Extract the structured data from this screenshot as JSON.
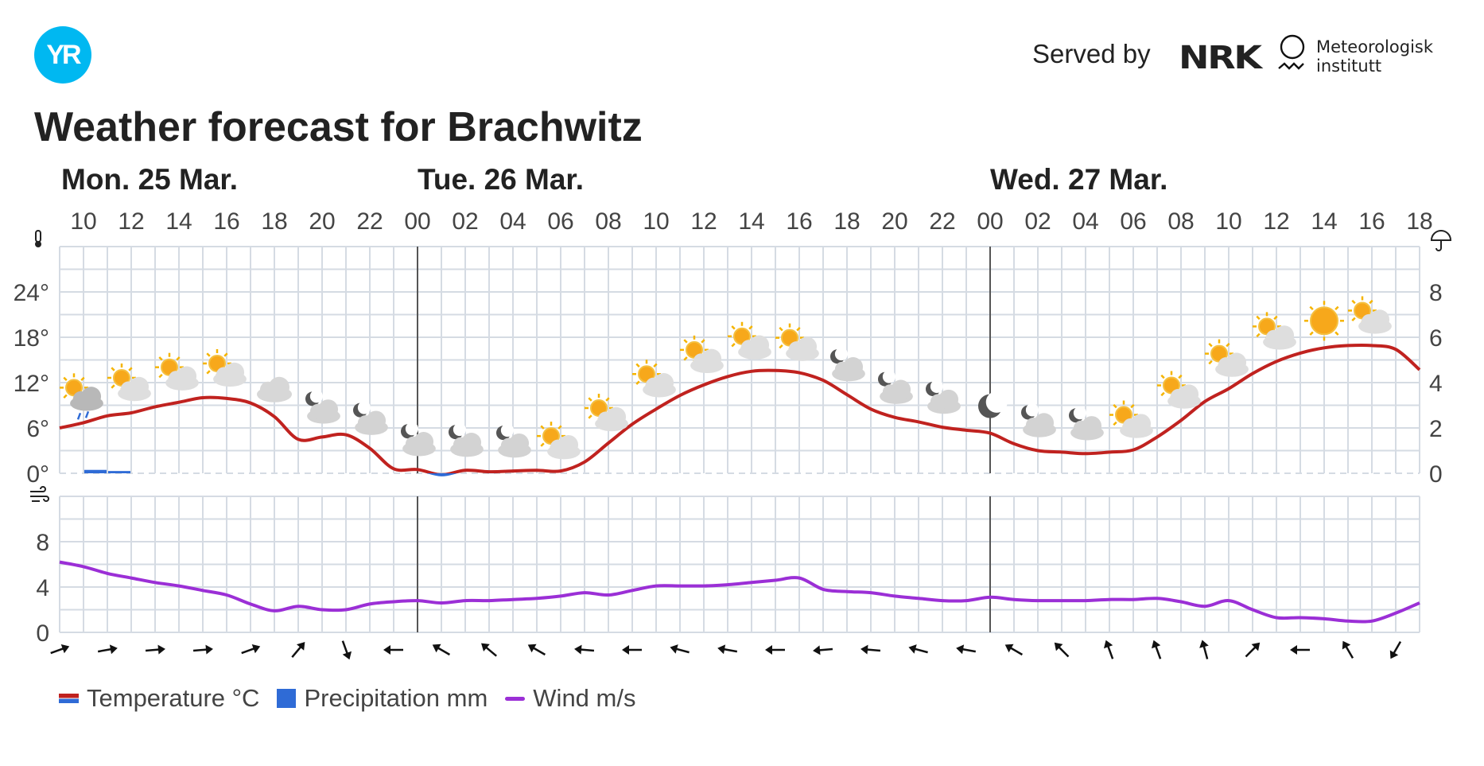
{
  "header": {
    "logo_text": "YR",
    "served_by": "Served by",
    "nrk_logo": "NRK",
    "met_name_line1": "Meteorologisk",
    "met_name_line2": "institutt",
    "title": "Weather forecast for Brachwitz"
  },
  "legend": {
    "temperature": "Temperature °C",
    "precipitation": "Precipitation mm",
    "wind": "Wind m/s"
  },
  "colors": {
    "temperature": "#c0221f",
    "temperature_below_zero": "#2f6bd6",
    "precipitation": "#2f6bd6",
    "wind": "#9b2fd6",
    "grid": "#d5dbe3",
    "day_divider": "#555555",
    "logo": "#00b8f1"
  },
  "chart_data": {
    "type": "line",
    "days": [
      {
        "label": "Mon. 25 Mar.",
        "start_hour": 9
      },
      {
        "label": "Tue. 26 Mar.",
        "start_hour": 24
      },
      {
        "label": "Wed. 27 Mar.",
        "start_hour": 48
      }
    ],
    "hour_ticks": [
      "10",
      "12",
      "14",
      "16",
      "18",
      "20",
      "22",
      "00",
      "02",
      "04",
      "06",
      "08",
      "10",
      "12",
      "14",
      "16",
      "18",
      "20",
      "22",
      "00",
      "02",
      "04",
      "06",
      "08",
      "10",
      "12",
      "14",
      "16",
      "18"
    ],
    "x_range_hours": [
      9,
      66
    ],
    "temperature": {
      "y_ticks": [
        "24°",
        "18°",
        "12°",
        "6°",
        "0°"
      ],
      "ylim": [
        0,
        30
      ],
      "values": [
        6.0,
        6.7,
        7.6,
        8.0,
        8.8,
        9.4,
        10.0,
        9.9,
        9.3,
        7.5,
        4.5,
        4.8,
        5.1,
        3.3,
        0.6,
        0.5,
        -0.2,
        0.4,
        0.2,
        0.3,
        0.4,
        0.3,
        1.5,
        4.0,
        6.5,
        8.5,
        10.3,
        11.7,
        12.8,
        13.5,
        13.6,
        13.3,
        12.3,
        10.4,
        8.5,
        7.4,
        6.8,
        6.1,
        5.7,
        5.3,
        3.9,
        3.0,
        2.8,
        2.6,
        2.8,
        3.1,
        4.8,
        7.0,
        9.5,
        11.2,
        13.2,
        14.8,
        15.9,
        16.6,
        16.9,
        16.9,
        16.4,
        13.7
      ]
    },
    "precipitation": {
      "y_ticks": [
        "8",
        "6",
        "4",
        "2",
        "0"
      ],
      "ylim": [
        0,
        10
      ],
      "bars": [
        {
          "hour": 10,
          "value": 0.15
        },
        {
          "hour": 11,
          "value": 0.1
        }
      ]
    },
    "wind": {
      "y_ticks": [
        "8",
        "4",
        "0"
      ],
      "ylim": [
        0,
        12
      ],
      "values": [
        6.2,
        5.8,
        5.2,
        4.8,
        4.4,
        4.1,
        3.7,
        3.3,
        2.5,
        1.9,
        2.3,
        2.0,
        2.0,
        2.5,
        2.7,
        2.8,
        2.6,
        2.8,
        2.8,
        2.9,
        3.0,
        3.2,
        3.5,
        3.3,
        3.7,
        4.1,
        4.1,
        4.1,
        4.2,
        4.4,
        4.6,
        4.8,
        3.8,
        3.6,
        3.5,
        3.2,
        3.0,
        2.8,
        2.8,
        3.1,
        2.9,
        2.8,
        2.8,
        2.8,
        2.9,
        2.9,
        3.0,
        2.7,
        2.3,
        2.8,
        2.0,
        1.3,
        1.3,
        1.2,
        1.0,
        1.0,
        1.7,
        2.6
      ]
    },
    "wind_direction_hours": [
      9,
      11,
      13,
      15,
      17,
      19,
      21,
      23,
      25,
      27,
      29,
      31,
      33,
      35,
      37,
      39,
      41,
      43,
      45,
      47,
      49,
      51,
      53,
      55,
      57,
      59,
      61,
      63,
      65
    ],
    "wind_direction_arrow_angles_deg": [
      70,
      80,
      85,
      85,
      70,
      40,
      160,
      270,
      300,
      310,
      300,
      275,
      270,
      285,
      280,
      270,
      265,
      275,
      285,
      280,
      300,
      315,
      340,
      340,
      345,
      45,
      270,
      330,
      210
    ],
    "weather_symbols": [
      {
        "hour": 10,
        "icon": "partly-cloudy-rain-icon"
      },
      {
        "hour": 12,
        "icon": "partly-cloudy-day-icon"
      },
      {
        "hour": 14,
        "icon": "partly-cloudy-day-icon"
      },
      {
        "hour": 16,
        "icon": "partly-cloudy-day-icon"
      },
      {
        "hour": 18,
        "icon": "cloudy-icon"
      },
      {
        "hour": 20,
        "icon": "partly-cloudy-night-icon"
      },
      {
        "hour": 22,
        "icon": "partly-cloudy-night-icon"
      },
      {
        "hour": 24,
        "icon": "partly-cloudy-night-icon"
      },
      {
        "hour": 26,
        "icon": "partly-cloudy-night-icon"
      },
      {
        "hour": 28,
        "icon": "partly-cloudy-night-icon"
      },
      {
        "hour": 30,
        "icon": "partly-cloudy-day-icon"
      },
      {
        "hour": 32,
        "icon": "partly-cloudy-day-icon"
      },
      {
        "hour": 34,
        "icon": "partly-cloudy-day-icon"
      },
      {
        "hour": 36,
        "icon": "partly-cloudy-day-icon"
      },
      {
        "hour": 38,
        "icon": "partly-cloudy-day-icon"
      },
      {
        "hour": 40,
        "icon": "partly-cloudy-day-icon"
      },
      {
        "hour": 42,
        "icon": "partly-cloudy-night-icon"
      },
      {
        "hour": 44,
        "icon": "partly-cloudy-night-icon"
      },
      {
        "hour": 46,
        "icon": "partly-cloudy-night-icon"
      },
      {
        "hour": 48,
        "icon": "clear-night-icon"
      },
      {
        "hour": 50,
        "icon": "partly-cloudy-night-icon"
      },
      {
        "hour": 52,
        "icon": "partly-cloudy-night-icon"
      },
      {
        "hour": 54,
        "icon": "partly-cloudy-day-icon"
      },
      {
        "hour": 56,
        "icon": "partly-cloudy-day-icon"
      },
      {
        "hour": 58,
        "icon": "partly-cloudy-day-icon"
      },
      {
        "hour": 60,
        "icon": "partly-cloudy-day-icon"
      },
      {
        "hour": 62,
        "icon": "clear-day-icon"
      },
      {
        "hour": 64,
        "icon": "partly-cloudy-day-icon"
      }
    ],
    "panel_icons": {
      "temperature": "thermometer-icon",
      "precipitation": "umbrella-icon",
      "wind": "wind-icon"
    },
    "grid": true
  }
}
